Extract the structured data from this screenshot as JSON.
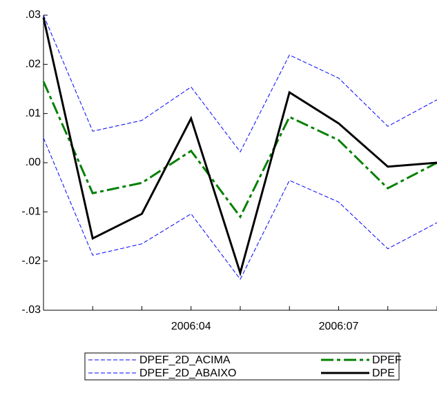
{
  "chart_data": {
    "type": "line",
    "categories": [
      null,
      null,
      null,
      "2006:04",
      null,
      null,
      "2006:07",
      null,
      null
    ],
    "series": [
      {
        "name": "DPEF_2D_ACIMA",
        "color": "#0000ff",
        "dash": "dashed",
        "values": [
          0.03,
          0.0064,
          0.0086,
          0.0154,
          0.0022,
          0.0219,
          0.0172,
          0.0074,
          0.0128
        ]
      },
      {
        "name": "DPEF_2D_ABAIXO",
        "color": "#0000ff",
        "dash": "dashed",
        "values": [
          0.005,
          -0.0188,
          -0.0165,
          -0.0104,
          -0.0237,
          -0.0036,
          -0.008,
          -0.0175,
          -0.0122
        ]
      },
      {
        "name": "DPEF",
        "color": "#008000",
        "dash": "dashdot",
        "values": [
          0.0165,
          -0.0062,
          -0.0041,
          0.0024,
          -0.011,
          0.0093,
          0.0046,
          -0.0052,
          0.0
        ]
      },
      {
        "name": "DPE",
        "color": "#000000",
        "dash": "solid",
        "values": [
          0.0295,
          -0.0154,
          -0.0104,
          0.009,
          -0.0224,
          0.0143,
          0.008,
          -0.0008,
          0.0
        ]
      }
    ],
    "ylim": [
      -0.03,
      0.03
    ],
    "yticks": [
      {
        "value": -0.03,
        "label": "-.03"
      },
      {
        "value": -0.02,
        "label": "-.02"
      },
      {
        "value": -0.01,
        "label": "-.01"
      },
      {
        "value": 0,
        "label": ".00"
      },
      {
        "value": 0.01,
        "label": ".01"
      },
      {
        "value": 0.02,
        "label": ".02"
      },
      {
        "value": 0.03,
        "label": ".03"
      }
    ],
    "grid": false,
    "legend": "bottom"
  }
}
